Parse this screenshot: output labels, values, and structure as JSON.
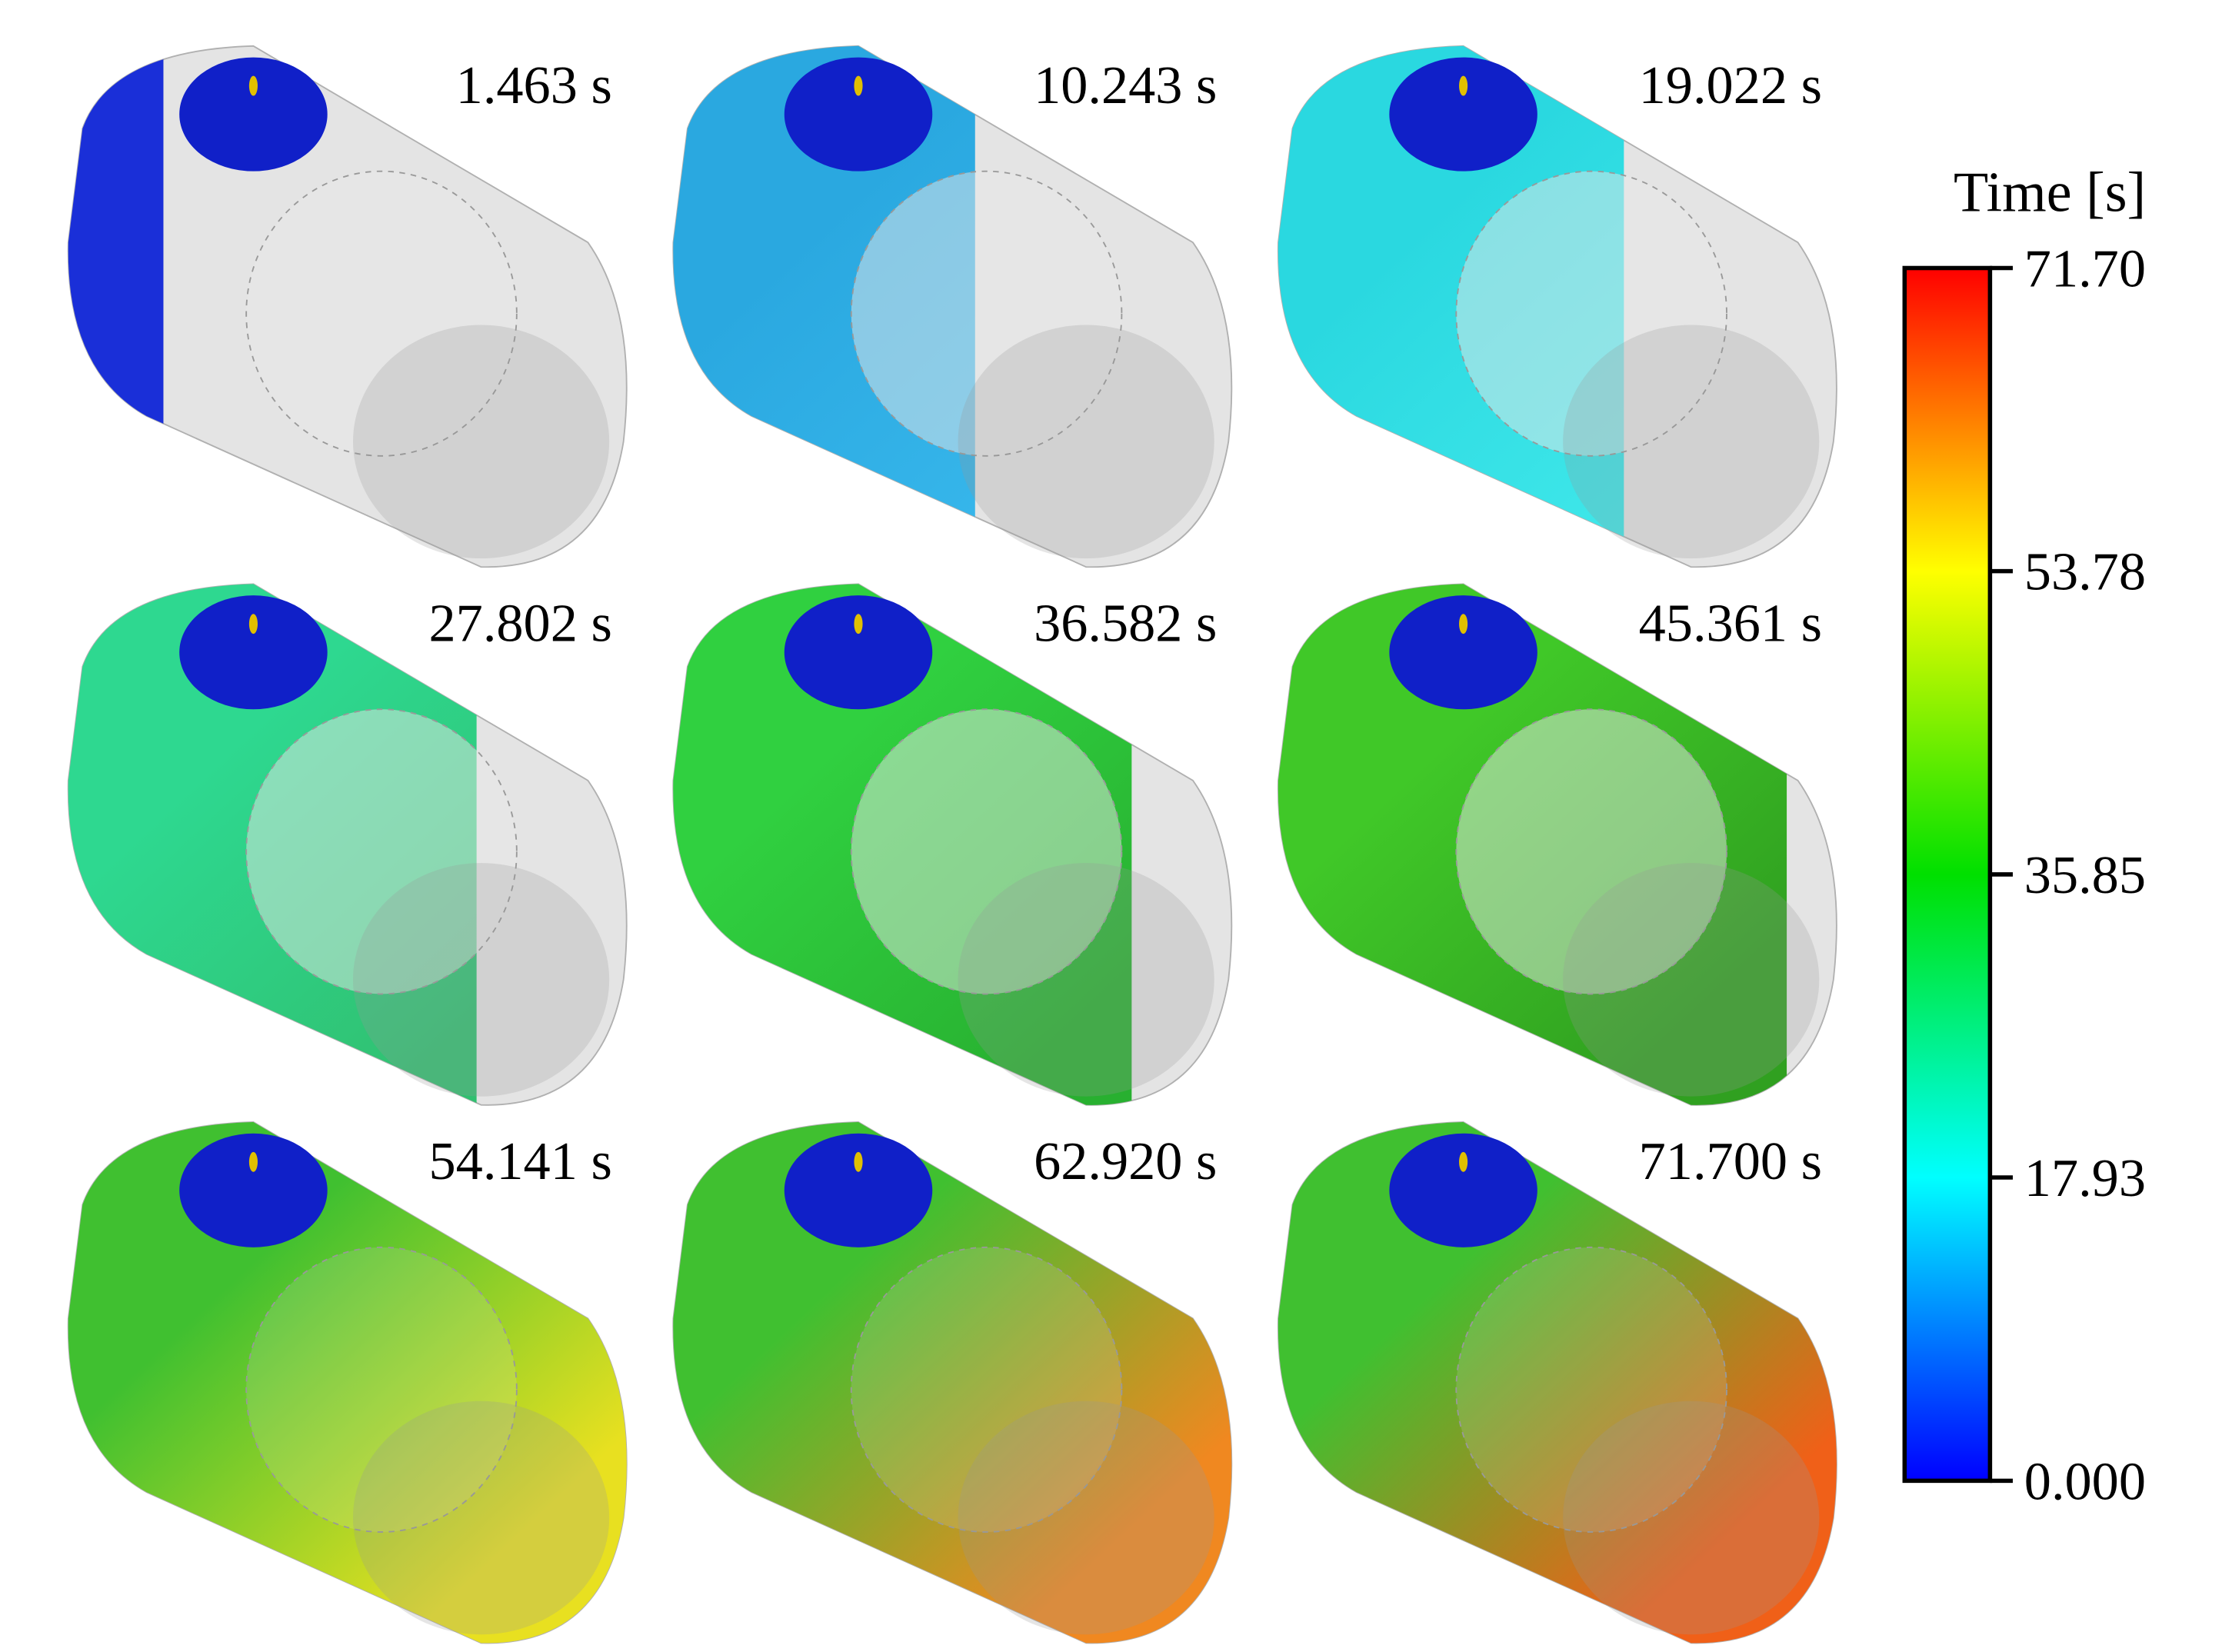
{
  "panels": [
    {
      "label": "1.463 s"
    },
    {
      "label": "10.243 s"
    },
    {
      "label": "19.022 s"
    },
    {
      "label": "27.802 s"
    },
    {
      "label": "36.582 s"
    },
    {
      "label": "45.361 s"
    },
    {
      "label": "54.141 s"
    },
    {
      "label": "62.920 s"
    },
    {
      "label": "71.700 s"
    }
  ],
  "colorbar": {
    "title": "Time [s]",
    "range": [
      0,
      71.7
    ],
    "ticks": [
      {
        "value": 0,
        "label": "0.000"
      },
      17.93,
      35.85,
      53.78,
      {
        "value": 71.7,
        "label": "71.70"
      }
    ],
    "colors": [
      "#0000ff",
      "#00ffff",
      "#00e000",
      "#ffff00",
      "#ff0000"
    ]
  }
}
